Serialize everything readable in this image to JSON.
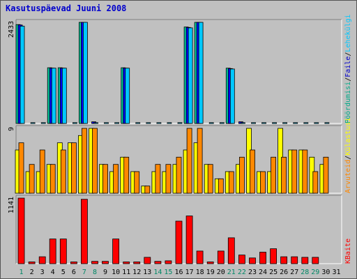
{
  "title": "Kasutuspäevad Juuni 2008",
  "chart_data": [
    {
      "type": "bar",
      "name_labels": [
        "Pöördumisi",
        "Faile",
        "Lehekülgi"
      ],
      "label_colors": [
        "#00aa88",
        "#0000cc",
        "#00c8ff"
      ],
      "ymax_label": "2433",
      "ymax": 2433,
      "categories": [
        "1",
        "2",
        "3",
        "4",
        "5",
        "6",
        "7",
        "8",
        "9",
        "10",
        "11",
        "12",
        "13",
        "14",
        "15",
        "16",
        "17",
        "18",
        "19",
        "20",
        "21",
        "22",
        "23",
        "24",
        "25",
        "26",
        "27",
        "28",
        "29",
        "30",
        "31"
      ],
      "series": [
        {
          "name": "Pöördumisi",
          "color": "#00c89a",
          "values": [
            2380,
            0,
            0,
            1340,
            1340,
            0,
            2433,
            0,
            0,
            0,
            1340,
            0,
            0,
            0,
            0,
            0,
            2320,
            2433,
            0,
            0,
            1330,
            0,
            0,
            0,
            0,
            0,
            0,
            0,
            0,
            0,
            0
          ]
        },
        {
          "name": "Faile",
          "color": "#0000ff",
          "values": [
            2370,
            0,
            0,
            1330,
            1330,
            0,
            2433,
            40,
            0,
            0,
            1330,
            0,
            0,
            0,
            0,
            0,
            2310,
            2433,
            0,
            0,
            1320,
            40,
            0,
            0,
            0,
            0,
            0,
            0,
            0,
            0,
            0
          ]
        },
        {
          "name": "Lehekülgi",
          "color": "#00c8ff",
          "values": [
            2340,
            20,
            20,
            1330,
            1330,
            20,
            2433,
            20,
            20,
            20,
            1330,
            20,
            20,
            20,
            20,
            20,
            2300,
            2433,
            20,
            20,
            1310,
            20,
            20,
            20,
            20,
            20,
            20,
            20,
            20,
            20,
            0
          ]
        }
      ]
    },
    {
      "type": "bar",
      "name_labels": [
        "Arvuteid",
        "Külastusi"
      ],
      "label_colors": [
        "#ff8800",
        "#ffff00"
      ],
      "ymax_label": "9",
      "ymax": 9,
      "categories": [
        "1",
        "2",
        "3",
        "4",
        "5",
        "6",
        "7",
        "8",
        "9",
        "10",
        "11",
        "12",
        "13",
        "14",
        "15",
        "16",
        "17",
        "18",
        "19",
        "20",
        "21",
        "22",
        "23",
        "24",
        "25",
        "26",
        "27",
        "28",
        "29",
        "30",
        "31"
      ],
      "series": [
        {
          "name": "Külastusi",
          "color": "#ffff00",
          "values": [
            6,
            3,
            3,
            4,
            7,
            7,
            8,
            9,
            4,
            3,
            5,
            3,
            1,
            3,
            3,
            4,
            6,
            7,
            4,
            2,
            3,
            4,
            9,
            3,
            3,
            9,
            6,
            6,
            5,
            4,
            0
          ]
        },
        {
          "name": "Arvuteid",
          "color": "#ff8800",
          "values": [
            7,
            4,
            6,
            4,
            6,
            7,
            9,
            9,
            4,
            4,
            5,
            3,
            1,
            4,
            4,
            5,
            9,
            9,
            4,
            2,
            3,
            5,
            6,
            3,
            5,
            5,
            6,
            6,
            3,
            5,
            0
          ]
        }
      ]
    },
    {
      "type": "bar",
      "name_labels": [
        "KBaite"
      ],
      "label_colors": [
        "#ff0000"
      ],
      "ymax_label": "1141",
      "ymax": 1141,
      "categories": [
        "1",
        "2",
        "3",
        "4",
        "5",
        "6",
        "7",
        "8",
        "9",
        "10",
        "11",
        "12",
        "13",
        "14",
        "15",
        "16",
        "17",
        "18",
        "19",
        "20",
        "21",
        "22",
        "23",
        "24",
        "25",
        "26",
        "27",
        "28",
        "29",
        "30",
        "31"
      ],
      "series": [
        {
          "name": "KBaite",
          "color": "#ff0000",
          "values": [
            1141,
            30,
            120,
            430,
            430,
            30,
            1120,
            40,
            40,
            430,
            30,
            30,
            110,
            40,
            50,
            740,
            830,
            220,
            30,
            220,
            450,
            150,
            100,
            200,
            260,
            120,
            120,
            110,
            110,
            0,
            0
          ]
        }
      ]
    }
  ],
  "x_axis": {
    "labels": [
      "1",
      "2",
      "3",
      "4",
      "5",
      "6",
      "7",
      "8",
      "9",
      "10",
      "11",
      "12",
      "13",
      "14",
      "15",
      "16",
      "17",
      "18",
      "19",
      "20",
      "21",
      "22",
      "23",
      "24",
      "25",
      "26",
      "27",
      "28",
      "29",
      "30",
      "31"
    ],
    "weekend_days": [
      "1",
      "7",
      "8",
      "14",
      "15",
      "21",
      "22",
      "28",
      "29"
    ],
    "weekend_color": "#008866",
    "weekday_color": "#000000"
  },
  "separator": "/"
}
